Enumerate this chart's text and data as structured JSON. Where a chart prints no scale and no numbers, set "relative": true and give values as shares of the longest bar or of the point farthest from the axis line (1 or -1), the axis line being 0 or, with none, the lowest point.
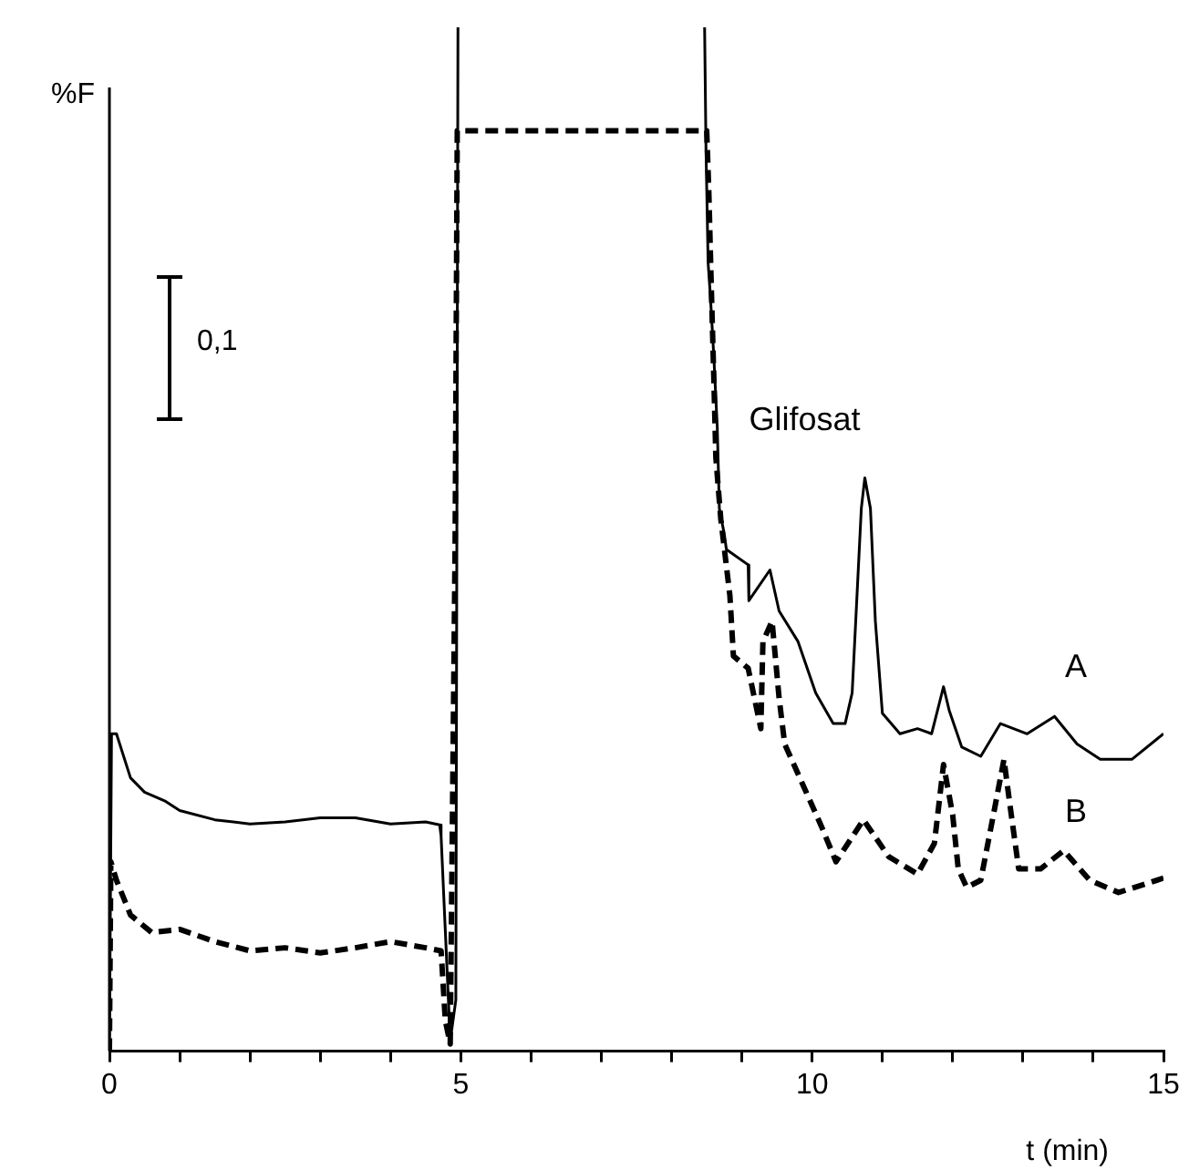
{
  "chart_data": {
    "type": "line",
    "xlabel": "t (min)",
    "ylabel": "%F",
    "relative": true,
    "xlim": [
      0,
      15
    ],
    "xticks": [
      0,
      {
        "value": 1,
        "label": null
      },
      {
        "value": 2,
        "label": null
      },
      {
        "value": 3,
        "label": null
      },
      {
        "value": 4,
        "label": null
      },
      5,
      {
        "value": 6,
        "label": null
      },
      {
        "value": 7,
        "label": null
      },
      {
        "value": 8,
        "label": null
      },
      {
        "value": 9,
        "label": null
      },
      10,
      {
        "value": 11,
        "label": null
      },
      {
        "value": 12,
        "label": null
      },
      {
        "value": 13,
        "label": null
      },
      {
        "value": 14,
        "label": null
      },
      15
    ],
    "grid": false,
    "legend": false,
    "marker": "none",
    "annotations": [
      "0,1",
      {
        "text": "Glifosat",
        "x": 10.75,
        "y": 0.56
      }
    ],
    "series": [
      {
        "name": "A",
        "color": "#000000",
        "line_style": "solid",
        "x": [
          0,
          0.03,
          0.1,
          0.3,
          0.5,
          0.8,
          1.0,
          1.5,
          2.0,
          2.5,
          3.0,
          3.5,
          4.0,
          4.5,
          4.7,
          4.72,
          4.85,
          4.93,
          4.96,
          6.7,
          8.47,
          8.49,
          8.52,
          8.55,
          8.6,
          8.65,
          8.68,
          8.75,
          8.78,
          9.09,
          9.1,
          9.4,
          9.53,
          9.8,
          10.05,
          10.3,
          10.47,
          10.57,
          10.7,
          10.75,
          10.83,
          10.9,
          11.0,
          11.25,
          11.5,
          11.7,
          11.87,
          11.95,
          12.13,
          12.4,
          12.68,
          13.06,
          13.45,
          13.77,
          14.1,
          14.55,
          15
        ],
        "values": [
          0,
          0.31,
          0.31,
          0.267,
          0.253,
          0.244,
          0.235,
          0.226,
          0.222,
          0.224,
          0.228,
          0.228,
          0.222,
          0.224,
          0.221,
          0.21,
          0.01,
          0.05,
          1,
          null,
          1,
          0.88,
          0.77,
          0.74,
          0.68,
          0.61,
          0.53,
          0.505,
          0.49,
          0.475,
          0.44,
          0.47,
          0.43,
          0.4,
          0.35,
          0.32,
          0.32,
          0.35,
          0.53,
          0.56,
          0.53,
          0.42,
          0.33,
          0.31,
          0.315,
          0.31,
          0.356,
          0.333,
          0.297,
          0.288,
          0.32,
          0.31,
          0.327,
          0.3,
          0.285,
          0.285,
          0.31
        ]
      },
      {
        "name": "B",
        "color": "#000000",
        "line_style": "dashed",
        "x": [
          0,
          0.02,
          0.1,
          0.3,
          0.6,
          1.0,
          1.5,
          2.0,
          2.5,
          3.0,
          3.5,
          4.0,
          4.5,
          4.72,
          4.78,
          4.85,
          4.92,
          4.95,
          8.5,
          8.53,
          8.56,
          8.6,
          8.63,
          8.7,
          8.83,
          8.88,
          9.09,
          9.27,
          9.3,
          9.43,
          9.53,
          9.61,
          9.87,
          10.13,
          10.34,
          10.73,
          11.09,
          11.5,
          11.74,
          11.87,
          12.0,
          12.08,
          12.2,
          12.4,
          12.6,
          12.73,
          12.82,
          12.94,
          13.25,
          13.58,
          13.95,
          14.36,
          15
        ],
        "values": [
          0,
          0.185,
          0.167,
          0.133,
          0.116,
          0.119,
          0.107,
          0.098,
          0.101,
          0.096,
          0.101,
          0.107,
          0.101,
          0.098,
          0.03,
          0.007,
          0.5,
          0.899,
          0.899,
          0.84,
          0.76,
          0.66,
          0.58,
          0.52,
          0.445,
          0.386,
          0.374,
          0.315,
          0.4,
          0.42,
          0.345,
          0.3,
          0.26,
          0.22,
          0.185,
          0.226,
          0.19,
          0.173,
          0.203,
          0.28,
          0.231,
          0.178,
          0.16,
          0.167,
          0.238,
          0.285,
          0.238,
          0.178,
          0.178,
          0.196,
          0.167,
          0.155,
          0.169
        ]
      }
    ]
  }
}
